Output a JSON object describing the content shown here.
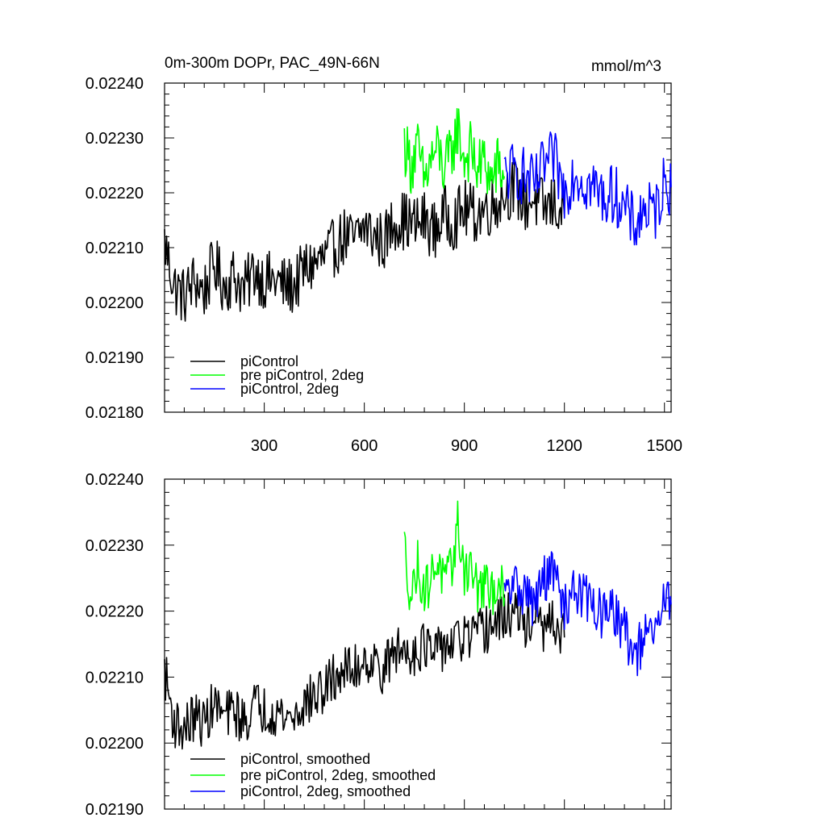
{
  "chart_data": [
    {
      "type": "line",
      "title": "0m-300m DOPr, PAC_49N-66N",
      "units": "mmol/m^3",
      "xlabel": "",
      "ylabel": "",
      "xlim": [
        1,
        1520
      ],
      "ylim": [
        0.0218,
        0.0224
      ],
      "xticks": [
        300,
        600,
        900,
        1200,
        1500
      ],
      "xtick_labels": [
        "300",
        "600",
        "900",
        "1200",
        "1500"
      ],
      "yticks": [
        0.0218,
        0.0219,
        0.022,
        0.0221,
        0.0222,
        0.0223,
        0.0224
      ],
      "ytick_labels": [
        "0.02180",
        "0.02190",
        "0.02200",
        "0.02210",
        "0.02220",
        "0.02230",
        "0.02240"
      ],
      "legend_position": "bottom-left",
      "series": [
        {
          "name": "piControl",
          "color": "#000000",
          "x": [
            1,
            30,
            60,
            90,
            120,
            150,
            180,
            210,
            240,
            270,
            300,
            330,
            360,
            390,
            420,
            450,
            480,
            510,
            540,
            570,
            600,
            630,
            660,
            690,
            720,
            750,
            780,
            810,
            840,
            870,
            900,
            930,
            960,
            990,
            1020,
            1050,
            1080,
            1110,
            1140,
            1170,
            1200
          ],
          "y": [
            0.02211,
            0.02203,
            0.02201,
            0.02204,
            0.02202,
            0.02207,
            0.02203,
            0.02205,
            0.02202,
            0.02206,
            0.02204,
            0.02204,
            0.02203,
            0.02203,
            0.02206,
            0.02207,
            0.02208,
            0.0221,
            0.02212,
            0.02211,
            0.02214,
            0.02212,
            0.02211,
            0.02215,
            0.02215,
            0.02214,
            0.02215,
            0.02213,
            0.02216,
            0.02215,
            0.02217,
            0.02216,
            0.02217,
            0.02218,
            0.0222,
            0.02221,
            0.02218,
            0.02219,
            0.02217,
            0.02218,
            0.02216
          ]
        },
        {
          "name": "pre piControl, 2deg",
          "color": "#00ff00",
          "x": [
            720,
            740,
            760,
            780,
            800,
            820,
            840,
            860,
            880,
            900,
            920,
            940,
            960,
            980,
            1000,
            1020
          ],
          "y": [
            0.02229,
            0.02225,
            0.02228,
            0.02222,
            0.02226,
            0.02228,
            0.02224,
            0.02227,
            0.02232,
            0.02226,
            0.02228,
            0.02224,
            0.02226,
            0.02222,
            0.02225,
            0.02223
          ]
        },
        {
          "name": "piControl, 2deg",
          "color": "#0000ff",
          "x": [
            1020,
            1050,
            1080,
            1110,
            1140,
            1170,
            1200,
            1230,
            1260,
            1290,
            1320,
            1350,
            1380,
            1410,
            1440,
            1470,
            1500,
            1520
          ],
          "y": [
            0.02223,
            0.02224,
            0.02223,
            0.02221,
            0.02225,
            0.02226,
            0.0222,
            0.02224,
            0.02222,
            0.02221,
            0.02219,
            0.0222,
            0.02217,
            0.02214,
            0.02217,
            0.02216,
            0.02222,
            0.02221
          ]
        }
      ]
    },
    {
      "type": "line",
      "title": "",
      "xlabel": "",
      "ylabel": "",
      "xlim": [
        1,
        1520
      ],
      "ylim": [
        0.0219,
        0.0224
      ],
      "xticks": [
        300,
        600,
        900,
        1200,
        1500
      ],
      "yticks": [
        0.0219,
        0.022,
        0.0221,
        0.0222,
        0.0223,
        0.0224
      ],
      "ytick_labels": [
        "0.02190",
        "0.02200",
        "0.02210",
        "0.02220",
        "0.02230",
        "0.02240"
      ],
      "legend_position": "bottom-left",
      "series": [
        {
          "name": "piControl, smoothed",
          "color": "#000000",
          "x": [
            1,
            30,
            60,
            90,
            120,
            150,
            180,
            210,
            240,
            270,
            300,
            330,
            360,
            390,
            420,
            450,
            480,
            510,
            540,
            570,
            600,
            630,
            660,
            690,
            720,
            750,
            780,
            810,
            840,
            870,
            900,
            930,
            960,
            990,
            1020,
            1050,
            1080,
            1110,
            1140,
            1170,
            1200
          ],
          "y": [
            0.02211,
            0.02203,
            0.02202,
            0.02204,
            0.02203,
            0.02206,
            0.02204,
            0.02205,
            0.02203,
            0.02206,
            0.02205,
            0.02205,
            0.02204,
            0.02204,
            0.02206,
            0.02207,
            0.02208,
            0.0221,
            0.02211,
            0.02211,
            0.02213,
            0.02212,
            0.02211,
            0.02214,
            0.02214,
            0.02214,
            0.02215,
            0.02213,
            0.02215,
            0.02215,
            0.02216,
            0.02216,
            0.02217,
            0.02218,
            0.02219,
            0.0222,
            0.02218,
            0.02219,
            0.02217,
            0.02218,
            0.02216
          ]
        },
        {
          "name": "pre piControl, 2deg, smoothed",
          "color": "#00ff00",
          "x": [
            720,
            740,
            760,
            780,
            800,
            820,
            840,
            860,
            880,
            900,
            920,
            940,
            960,
            980,
            1000,
            1020
          ],
          "y": [
            0.0223,
            0.02222,
            0.02227,
            0.02223,
            0.02225,
            0.02228,
            0.02224,
            0.02226,
            0.02233,
            0.02226,
            0.02227,
            0.02223,
            0.02224,
            0.02222,
            0.02225,
            0.02222
          ]
        },
        {
          "name": "piControl, 2deg, smoothed",
          "color": "#0000ff",
          "x": [
            1020,
            1050,
            1080,
            1110,
            1140,
            1170,
            1200,
            1230,
            1260,
            1290,
            1320,
            1350,
            1380,
            1410,
            1440,
            1470,
            1500,
            1520
          ],
          "y": [
            0.02222,
            0.02224,
            0.02223,
            0.02221,
            0.02225,
            0.02226,
            0.0222,
            0.02224,
            0.02222,
            0.02221,
            0.02219,
            0.0222,
            0.02217,
            0.02213,
            0.02216,
            0.02216,
            0.02222,
            0.02221
          ]
        }
      ]
    }
  ]
}
